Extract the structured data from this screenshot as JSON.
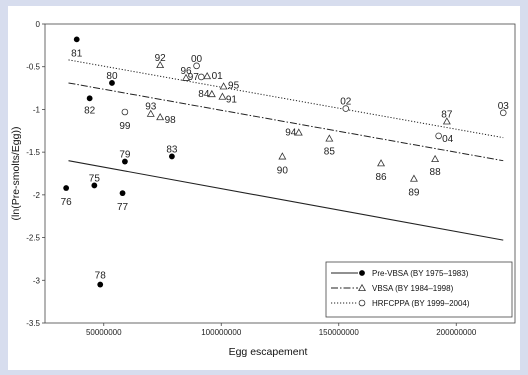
{
  "chart_data": {
    "type": "scatter",
    "xlabel": "Egg escapement",
    "ylabel": "(ln(Pre-smolts/Egg))",
    "xlim": [
      25000000,
      225000000
    ],
    "ylim": [
      -3.5,
      0
    ],
    "xticks": [
      {
        "value": 50000000,
        "label": "50000000"
      },
      {
        "value": 100000000,
        "label": "100000000"
      },
      {
        "value": 150000000,
        "label": "150000000"
      },
      {
        "value": 200000000,
        "label": "200000000"
      }
    ],
    "yticks": [
      {
        "value": 0,
        "label": "0"
      },
      {
        "value": -0.5,
        "label": "-0.5"
      },
      {
        "value": -1,
        "label": "-1"
      },
      {
        "value": -1.5,
        "label": "-1.5"
      },
      {
        "value": -2,
        "label": "-2"
      },
      {
        "value": -2.5,
        "label": "-2.5"
      },
      {
        "value": -3,
        "label": "-3"
      },
      {
        "value": -3.5,
        "label": "-3.5"
      }
    ],
    "legend_position": "bottom-right",
    "series": [
      {
        "name": "Pre-VBSA (BY 1975–1983)",
        "marker": "filled-circle",
        "line": "solid",
        "fit": [
          [
            35000000,
            -1.6
          ],
          [
            220000000,
            -2.53
          ]
        ],
        "points": [
          {
            "label": "81",
            "x": 38500000,
            "y": -0.18
          },
          {
            "label": "80",
            "x": 53500000,
            "y": -0.69
          },
          {
            "label": "82",
            "x": 44000000,
            "y": -0.87
          },
          {
            "label": "79",
            "x": 59000000,
            "y": -1.61
          },
          {
            "label": "83",
            "x": 79000000,
            "y": -1.55
          },
          {
            "label": "75",
            "x": 46000000,
            "y": -1.89
          },
          {
            "label": "76",
            "x": 34000000,
            "y": -1.92
          },
          {
            "label": "77",
            "x": 58000000,
            "y": -1.98
          },
          {
            "label": "78",
            "x": 48500000,
            "y": -3.05
          }
        ]
      },
      {
        "name": "VBSA (BY 1984–1998)",
        "marker": "triangle",
        "line": "dash-dot",
        "fit": [
          [
            35000000,
            -0.69
          ],
          [
            220000000,
            -1.6
          ]
        ],
        "points": [
          {
            "label": "92",
            "x": 74000000,
            "y": -0.48
          },
          {
            "label": "96",
            "x": 85000000,
            "y": -0.63
          },
          {
            "label": "01",
            "x": 94000000,
            "y": -0.61
          },
          {
            "label": "95",
            "x": 101000000,
            "y": -0.73
          },
          {
            "label": "84",
            "x": 96000000,
            "y": -0.82
          },
          {
            "label": "91",
            "x": 100500000,
            "y": -0.85
          },
          {
            "label": "93",
            "x": 70000000,
            "y": -1.05
          },
          {
            "label": "98",
            "x": 74000000,
            "y": -1.09
          },
          {
            "label": "94",
            "x": 133000000,
            "y": -1.27
          },
          {
            "label": "85",
            "x": 146000000,
            "y": -1.34
          },
          {
            "label": "90",
            "x": 126000000,
            "y": -1.55
          },
          {
            "label": "86",
            "x": 168000000,
            "y": -1.63
          },
          {
            "label": "88",
            "x": 191000000,
            "y": -1.58
          },
          {
            "label": "89",
            "x": 182000000,
            "y": -1.81
          },
          {
            "label": "87",
            "x": 196000000,
            "y": -1.14
          }
        ]
      },
      {
        "name": "HRFCPPA (BY 1999–2004)",
        "marker": "open-circle",
        "line": "dotted",
        "fit": [
          [
            35000000,
            -0.42
          ],
          [
            220000000,
            -1.33
          ]
        ],
        "points": [
          {
            "label": "00",
            "x": 89500000,
            "y": -0.49
          },
          {
            "label": "97",
            "x": 91500000,
            "y": -0.62
          },
          {
            "label": "99",
            "x": 59000000,
            "y": -1.03
          },
          {
            "label": "02",
            "x": 153000000,
            "y": -0.99
          },
          {
            "label": "04",
            "x": 192500000,
            "y": -1.31
          },
          {
            "label": "03",
            "x": 220000000,
            "y": -1.04
          }
        ]
      }
    ]
  }
}
